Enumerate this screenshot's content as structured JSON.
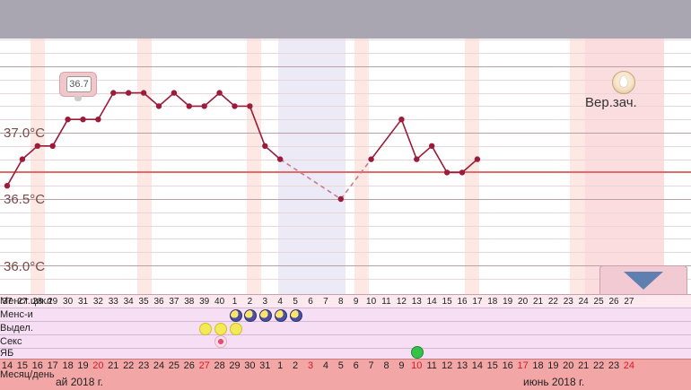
{
  "chart_data": {
    "type": "line",
    "y_ticks": [
      "37.0°C",
      "36.5°C",
      "36.0°C"
    ],
    "ylim": [
      35.8,
      37.95
    ],
    "coverline": 36.7,
    "cycle_days": [
      "37",
      "27",
      "28",
      "29",
      "30",
      "31",
      "32",
      "33",
      "34",
      "35",
      "36",
      "37",
      "38",
      "39",
      "40",
      "1",
      "2",
      "3",
      "4",
      "5",
      "6",
      "7",
      "8",
      "9",
      "10",
      "11",
      "12",
      "13",
      "14",
      "15",
      "16",
      "17",
      "18",
      "19",
      "20",
      "21",
      "22",
      "23",
      "24",
      "25",
      "26",
      "27"
    ],
    "series": [
      {
        "day_index": 0,
        "value": 36.6
      },
      {
        "day_index": 1,
        "value": 36.8
      },
      {
        "day_index": 2,
        "value": 36.9
      },
      {
        "day_index": 3,
        "value": 36.9
      },
      {
        "day_index": 4,
        "value": 37.1
      },
      {
        "day_index": 5,
        "value": 37.1
      },
      {
        "day_index": 6,
        "value": 37.1
      },
      {
        "day_index": 7,
        "value": 37.3
      },
      {
        "day_index": 8,
        "value": 37.3
      },
      {
        "day_index": 9,
        "value": 37.3
      },
      {
        "day_index": 10,
        "value": 37.2
      },
      {
        "day_index": 11,
        "value": 37.3
      },
      {
        "day_index": 12,
        "value": 37.2
      },
      {
        "day_index": 13,
        "value": 37.2
      },
      {
        "day_index": 14,
        "value": 37.3
      },
      {
        "day_index": 15,
        "value": 37.2
      },
      {
        "day_index": 16,
        "value": 37.2
      },
      {
        "day_index": 17,
        "value": 36.9
      },
      {
        "day_index": 18,
        "value": 36.8
      },
      {
        "day_index": 22,
        "value": 36.5
      },
      {
        "day_index": 24,
        "value": 36.8
      },
      {
        "day_index": 26,
        "value": 37.1
      },
      {
        "day_index": 27,
        "value": 36.8
      },
      {
        "day_index": 28,
        "value": 36.9
      },
      {
        "day_index": 29,
        "value": 36.7
      },
      {
        "day_index": 30,
        "value": 36.7
      },
      {
        "day_index": 31,
        "value": 36.8
      }
    ],
    "dashed_segments": [
      [
        18,
        22
      ],
      [
        22,
        24
      ]
    ],
    "tooltip_value": "36.7"
  },
  "cover_label": "Вер.зач.",
  "row_labels": [
    "Менст.цикл",
    "Менс-и",
    "Выдел.",
    "Секс",
    "ЯБ",
    "Месяц/день"
  ],
  "dates": [
    "14",
    "15",
    "16",
    "17",
    "18",
    "19",
    "20",
    "21",
    "22",
    "23",
    "24",
    "25",
    "26",
    "27",
    "28",
    "29",
    "30",
    "31",
    "1",
    "2",
    "3",
    "4",
    "5",
    "6",
    "7",
    "8",
    "9",
    "10",
    "11",
    "12",
    "13",
    "14",
    "15",
    "16",
    "17",
    "18",
    "19",
    "20",
    "21",
    "22",
    "23",
    "24"
  ],
  "month_labels": [
    "ай 2018 г.",
    "июнь 2018 г."
  ],
  "colors": {
    "line": "#9c1a3a",
    "coverline": "#e36a6a",
    "accent_red": "#d8192b"
  }
}
